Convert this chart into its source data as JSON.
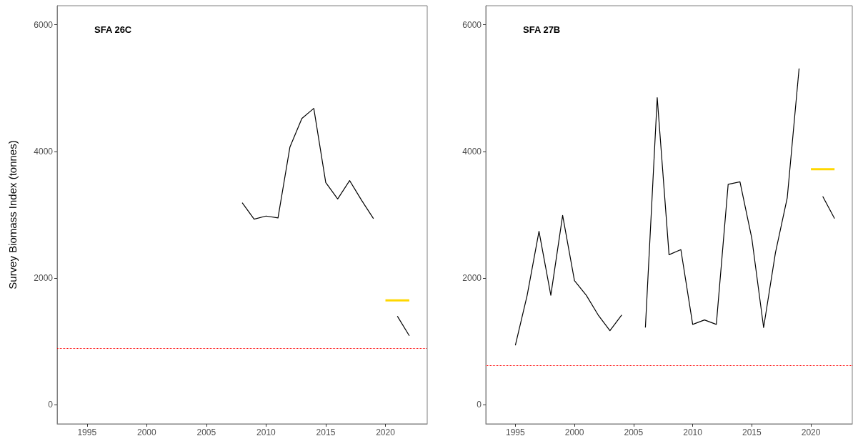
{
  "chart_data": [
    {
      "type": "line",
      "title": "SFA 26C",
      "ylabel": "Survey Biomass Index (tonnes)",
      "xlim": [
        1992.5,
        2023.5
      ],
      "xticks": [
        1995,
        2000,
        2005,
        2010,
        2015,
        2020
      ],
      "ylim": [
        -300,
        6300
      ],
      "yticks": [
        0,
        2000,
        4000,
        6000
      ],
      "series": [
        {
          "color": "#000000",
          "x": [
            2008,
            2009,
            2010,
            2011,
            2012,
            2013,
            2014,
            2015,
            2016,
            2017,
            2018,
            2019,
            2020,
            2021,
            2022
          ],
          "values": [
            3190,
            2930,
            2980,
            2950,
            4070,
            4520,
            4680,
            3510,
            3250,
            3540,
            3230,
            2940,
            null,
            1400,
            1090
          ]
        },
        {
          "color": "#ffd700",
          "x": [
            2020,
            2022
          ],
          "values": [
            1650,
            1650
          ]
        }
      ],
      "ref_lines": [
        {
          "axis": "y",
          "value": 890,
          "color": "#ff0000",
          "line_style": "dotted"
        }
      ],
      "grid": false,
      "marker": "none",
      "line_style": "solid"
    },
    {
      "type": "line",
      "title": "SFA 27B",
      "xlim": [
        1992.5,
        2023.5
      ],
      "xticks": [
        1995,
        2000,
        2005,
        2010,
        2015,
        2020
      ],
      "ylim": [
        -300,
        6300
      ],
      "yticks": [
        0,
        2000,
        4000,
        6000
      ],
      "series": [
        {
          "color": "#000000",
          "x": [
            1995,
            1996,
            1997,
            1998,
            1999,
            2000,
            2001,
            2002,
            2003,
            2004,
            2005,
            2006,
            2007,
            2008,
            2009,
            2010,
            2011,
            2012,
            2013,
            2014,
            2015,
            2016,
            2017,
            2018,
            2019,
            2020,
            2021,
            2022
          ],
          "values": [
            940,
            1730,
            2740,
            1730,
            2990,
            1960,
            1730,
            1420,
            1170,
            1420,
            null,
            1220,
            4850,
            2370,
            2450,
            1270,
            1340,
            1270,
            3480,
            3520,
            2630,
            1220,
            2400,
            3270,
            5310,
            null,
            3290,
            2940
          ]
        },
        {
          "color": "#ffd700",
          "x": [
            2020,
            2022
          ],
          "values": [
            3720,
            3720
          ]
        }
      ],
      "ref_lines": [
        {
          "axis": "y",
          "value": 625,
          "color": "#ff0000",
          "line_style": "dotted"
        }
      ],
      "grid": false,
      "marker": "none",
      "line_style": "solid"
    }
  ]
}
